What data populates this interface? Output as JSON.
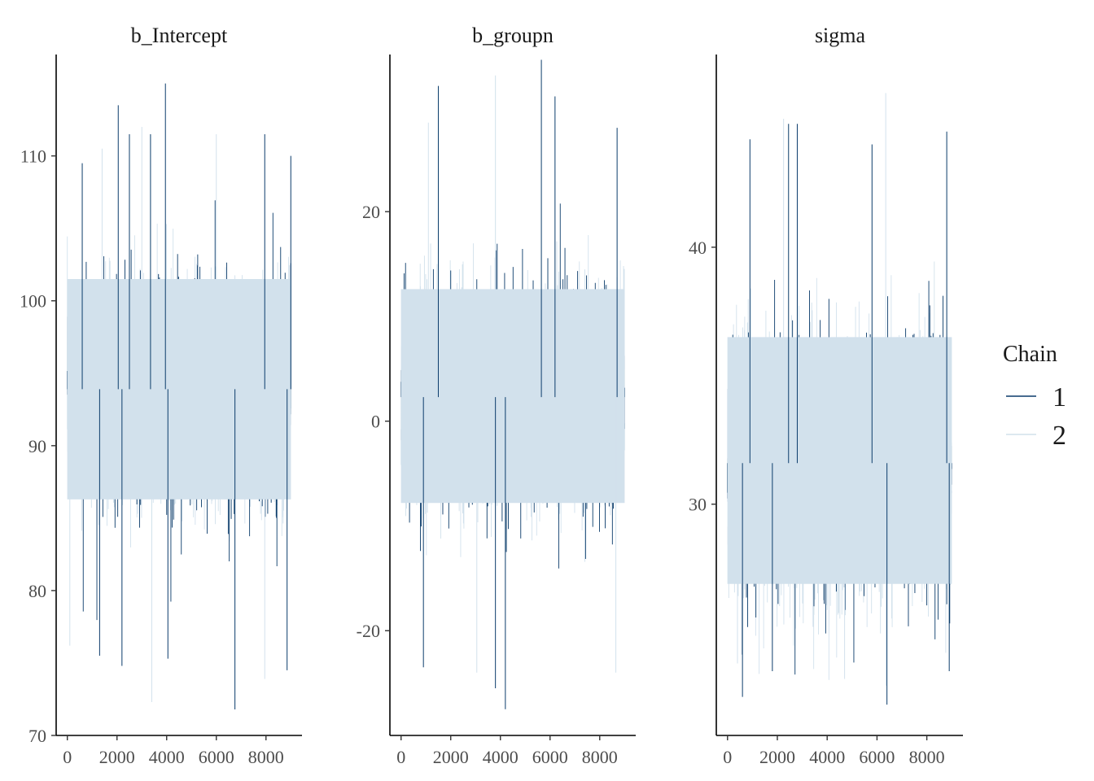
{
  "chart_data": {
    "type": "line",
    "legend": {
      "title": "Chain",
      "placement": "right",
      "entries": [
        {
          "label": "1",
          "color": "#0b3c6b"
        },
        {
          "label": "2",
          "color": "#d2e1ec"
        }
      ]
    },
    "grid": false,
    "iterations": 9000,
    "facets": [
      {
        "title": "b_Intercept",
        "ylim": [
          70,
          117
        ],
        "yticks": [
          70,
          80,
          90,
          100,
          110
        ],
        "xticks": [
          0,
          2000,
          4000,
          6000,
          8000
        ],
        "xlim": [
          -450,
          9450
        ],
        "center": 93.9,
        "band": [
          86.3,
          101.5
        ],
        "extremes": [
          {
            "x": 600,
            "y": 109.5
          },
          {
            "x": 1400,
            "y": 110.5
          },
          {
            "x": 2050,
            "y": 113.5
          },
          {
            "x": 2500,
            "y": 111.5
          },
          {
            "x": 3000,
            "y": 112
          },
          {
            "x": 3350,
            "y": 111.5
          },
          {
            "x": 3950,
            "y": 115
          },
          {
            "x": 6000,
            "y": 111.5
          },
          {
            "x": 7950,
            "y": 111.5
          },
          {
            "x": 9000,
            "y": 110
          },
          {
            "x": 100,
            "y": 76.2
          },
          {
            "x": 1300,
            "y": 75.5
          },
          {
            "x": 2200,
            "y": 74.8
          },
          {
            "x": 3400,
            "y": 72.3
          },
          {
            "x": 4050,
            "y": 75.3
          },
          {
            "x": 6750,
            "y": 71.8
          },
          {
            "x": 7950,
            "y": 73.9
          },
          {
            "x": 8850,
            "y": 74.5
          }
        ]
      },
      {
        "title": "b_groupn",
        "ylim": [
          -30,
          35
        ],
        "yticks": [
          -20,
          0,
          20
        ],
        "xticks": [
          0,
          2000,
          4000,
          6000,
          8000
        ],
        "xlim": [
          -450,
          9450
        ],
        "center": 2.3,
        "band": [
          -7.8,
          12.6
        ],
        "extremes": [
          {
            "x": 1500,
            "y": 32
          },
          {
            "x": 3800,
            "y": 33
          },
          {
            "x": 5650,
            "y": 34.5
          },
          {
            "x": 6200,
            "y": 31
          },
          {
            "x": 1100,
            "y": 28.5
          },
          {
            "x": 8700,
            "y": 28
          },
          {
            "x": 900,
            "y": -23.5
          },
          {
            "x": 3050,
            "y": -24
          },
          {
            "x": 3800,
            "y": -25.5
          },
          {
            "x": 4200,
            "y": -27.5
          },
          {
            "x": 8650,
            "y": -24
          }
        ]
      },
      {
        "title": "sigma",
        "ylim": [
          21,
          47.5
        ],
        "yticks": [
          30,
          40
        ],
        "xticks": [
          0,
          2000,
          4000,
          6000,
          8000
        ],
        "xlim": [
          -450,
          9450
        ],
        "center": 31.6,
        "band": [
          26.9,
          36.5
        ],
        "extremes": [
          {
            "x": 900,
            "y": 44.2
          },
          {
            "x": 2250,
            "y": 45
          },
          {
            "x": 2450,
            "y": 44.8
          },
          {
            "x": 2800,
            "y": 44.8
          },
          {
            "x": 6350,
            "y": 46
          },
          {
            "x": 5800,
            "y": 44
          },
          {
            "x": 8800,
            "y": 44.5
          },
          {
            "x": 400,
            "y": 23.8
          },
          {
            "x": 600,
            "y": 22.5
          },
          {
            "x": 1800,
            "y": 23.5
          },
          {
            "x": 4700,
            "y": 23.2
          },
          {
            "x": 6400,
            "y": 22.2
          },
          {
            "x": 8900,
            "y": 23.5
          }
        ]
      }
    ]
  }
}
